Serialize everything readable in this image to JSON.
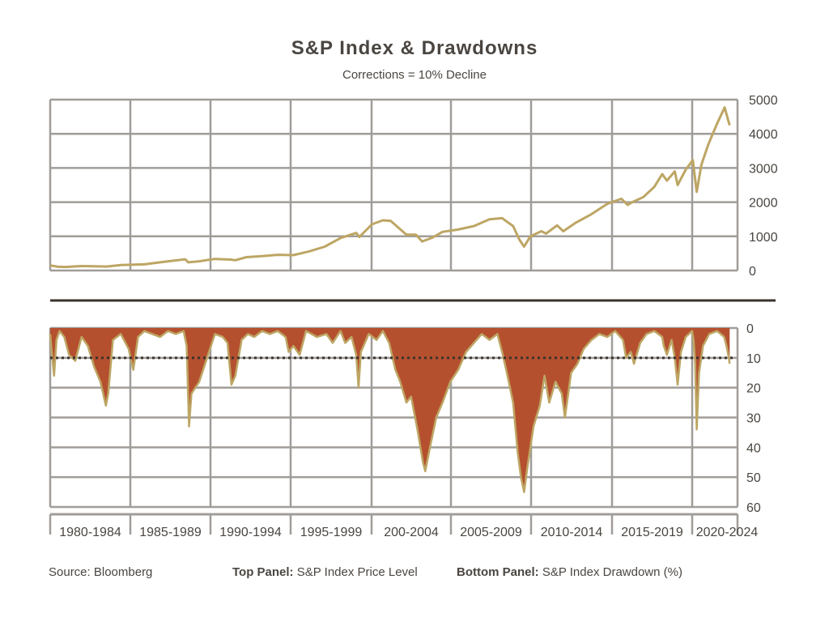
{
  "title": "S&P Index & Drawdowns",
  "subtitle": "Corrections = 10% Decline",
  "footer": {
    "source": "Source: Bloomberg",
    "top_label": "Top Panel:",
    "top_text": "S&P Index Price Level",
    "bottom_label": "Bottom Panel:",
    "bottom_text": "S&P Index Drawdown (%)"
  },
  "colors": {
    "line": "#bda664",
    "fill": "#b5502f",
    "grid": "#a09d99",
    "threshold": "#3a332d",
    "divider": "#3a332d"
  },
  "chart_data": [
    {
      "type": "line",
      "panel": "top",
      "ylim": [
        0,
        5000
      ],
      "yticks": [
        "0",
        "1000",
        "2000",
        "3000",
        "4000",
        "5000"
      ],
      "grid": true,
      "series": [
        {
          "x": [
            1979.0,
            1979.5,
            1980.0,
            1981.0,
            1982.0,
            1982.6,
            1983.5,
            1985.0,
            1986.0,
            1987.6,
            1987.8,
            1988.5,
            1989.5,
            1990.5,
            1990.8,
            1991.5,
            1992.5,
            1993.5,
            1994.5,
            1995.5,
            1996.5,
            1997.5,
            1998.5,
            1998.7,
            1999.5,
            2000.2,
            2000.7,
            2001.2,
            2001.7,
            2002.3,
            2002.7,
            2003.3,
            2004.0,
            2005.0,
            2006.0,
            2007.0,
            2007.8,
            2008.5,
            2008.9,
            2009.2,
            2009.6,
            2010.3,
            2010.6,
            2011.3,
            2011.7,
            2012.5,
            2013.5,
            2014.5,
            2015.4,
            2015.8,
            2016.1,
            2016.8,
            2017.5,
            2018.0,
            2018.3,
            2018.8,
            2018.98,
            2019.5,
            2019.95,
            2020.2,
            2020.5,
            2020.95,
            2021.5,
            2021.98,
            2022.2,
            2022.3
          ],
          "values": [
            150,
            110,
            105,
            130,
            120,
            115,
            160,
            180,
            240,
            330,
            240,
            270,
            340,
            320,
            300,
            390,
            420,
            460,
            450,
            560,
            700,
            950,
            1100,
            980,
            1350,
            1470,
            1450,
            1250,
            1050,
            1050,
            850,
            950,
            1130,
            1200,
            1300,
            1500,
            1530,
            1300,
            900,
            700,
            1000,
            1150,
            1080,
            1320,
            1150,
            1400,
            1650,
            1950,
            2100,
            1920,
            2000,
            2150,
            2450,
            2820,
            2630,
            2900,
            2500,
            2950,
            3230,
            2300,
            3100,
            3700,
            4300,
            4770,
            4400,
            4250
          ]
        }
      ]
    },
    {
      "type": "area",
      "panel": "bottom",
      "ylim": [
        0,
        60
      ],
      "yticks": [
        "0",
        "10",
        "20",
        "30",
        "40",
        "50",
        "60"
      ],
      "xticks": [
        "1980-1984",
        "1985-1989",
        "1990-1994",
        "1995-1999",
        "200-2004",
        "2005-2009",
        "2010-2014",
        "2015-2019",
        "2020-2024"
      ],
      "threshold": 10,
      "grid": true,
      "series": [
        {
          "x": [
            1979.0,
            1979.1,
            1979.25,
            1979.4,
            1979.6,
            1979.9,
            1980.2,
            1980.6,
            1981.0,
            1981.4,
            1981.8,
            1982.2,
            1982.55,
            1982.7,
            1983.0,
            1983.5,
            1984.0,
            1984.3,
            1984.6,
            1985.0,
            1985.5,
            1986.0,
            1986.5,
            1987.0,
            1987.5,
            1987.7,
            1987.85,
            1988.0,
            1988.5,
            1989.0,
            1989.5,
            1990.0,
            1990.3,
            1990.55,
            1990.8,
            1991.2,
            1991.6,
            1992.0,
            1992.5,
            1993.0,
            1993.5,
            1994.0,
            1994.2,
            1994.5,
            1994.9,
            1995.3,
            1996.0,
            1996.6,
            1997.0,
            1997.5,
            1997.8,
            1998.2,
            1998.5,
            1998.65,
            1998.8,
            1999.3,
            1999.8,
            2000.2,
            2000.6,
            2001.0,
            2001.3,
            2001.7,
            2002.0,
            2002.4,
            2002.75,
            2002.9,
            2003.2,
            2003.6,
            2004.0,
            2004.5,
            2005.0,
            2005.5,
            2006.0,
            2006.5,
            2007.0,
            2007.5,
            2007.8,
            2008.1,
            2008.5,
            2008.8,
            2009.0,
            2009.2,
            2009.4,
            2009.8,
            2010.2,
            2010.5,
            2010.8,
            2011.2,
            2011.6,
            2011.8,
            2012.2,
            2012.6,
            2013.0,
            2013.5,
            2014.0,
            2014.5,
            2015.0,
            2015.5,
            2015.7,
            2016.0,
            2016.2,
            2016.6,
            2017.0,
            2017.5,
            2018.0,
            2018.1,
            2018.3,
            2018.6,
            2018.8,
            2018.98,
            2019.2,
            2019.5,
            2019.9,
            2020.0,
            2020.1,
            2020.2,
            2020.35,
            2020.6,
            2021.0,
            2021.5,
            2021.95,
            2022.1,
            2022.25,
            2022.3
          ],
          "values": [
            2,
            8,
            16,
            4,
            1,
            3,
            9,
            11,
            3,
            6,
            13,
            18,
            26,
            22,
            4,
            2,
            7,
            14,
            3,
            1,
            2,
            3,
            1,
            2,
            1,
            6,
            33,
            22,
            18,
            10,
            2,
            3,
            5,
            19,
            16,
            4,
            2,
            3,
            1,
            2,
            1,
            3,
            8,
            6,
            9,
            1,
            3,
            2,
            5,
            1,
            5,
            3,
            9,
            20,
            8,
            2,
            4,
            1,
            5,
            14,
            18,
            25,
            23,
            34,
            45,
            48,
            40,
            30,
            25,
            18,
            14,
            8,
            5,
            2,
            4,
            2,
            8,
            15,
            25,
            42,
            50,
            55,
            47,
            33,
            26,
            16,
            25,
            18,
            22,
            30,
            15,
            12,
            7,
            4,
            2,
            3,
            1,
            4,
            10,
            8,
            12,
            5,
            2,
            1,
            3,
            6,
            9,
            4,
            10,
            19,
            8,
            3,
            1,
            4,
            12,
            34,
            15,
            6,
            2,
            1,
            3,
            6,
            10,
            12
          ]
        }
      ]
    }
  ]
}
